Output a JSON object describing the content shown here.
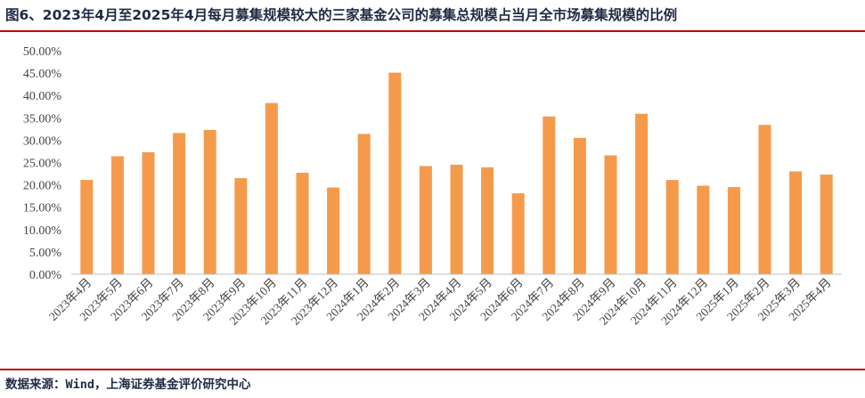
{
  "title": "图6、2023年4月至2025年4月每月募集规模较大的三家基金公司的募集总规模占当月全市场募集规模的比例",
  "source": "数据来源：Wind，上海证券基金评价研究中心",
  "colors": {
    "bar": "#F59A4B",
    "rule": "#C00000",
    "text": "#1F2A44"
  },
  "chart_data": {
    "type": "bar",
    "title": "",
    "xlabel": "",
    "ylabel": "",
    "ylim": [
      0,
      50
    ],
    "yticks": [
      "0.00%",
      "5.00%",
      "10.00%",
      "15.00%",
      "20.00%",
      "25.00%",
      "30.00%",
      "35.00%",
      "40.00%",
      "45.00%",
      "50.00%"
    ],
    "grid": false,
    "legend": "none",
    "categories": [
      "2023年4月",
      "2023年5月",
      "2023年6月",
      "2023年7月",
      "2023年8月",
      "2023年9月",
      "2023年10月",
      "2023年11月",
      "2023年12月",
      "2024年1月",
      "2024年2月",
      "2024年3月",
      "2024年4月",
      "2024年5月",
      "2024年6月",
      "2024年7月",
      "2024年8月",
      "2024年9月",
      "2024年10月",
      "2024年11月",
      "2024年12月",
      "2025年1月",
      "2025年2月",
      "2025年3月",
      "2025年4月"
    ],
    "values": [
      21.1,
      26.4,
      27.3,
      31.6,
      32.3,
      21.5,
      38.3,
      22.7,
      19.4,
      31.4,
      45.1,
      24.2,
      24.5,
      23.9,
      18.1,
      35.3,
      30.5,
      26.6,
      35.9,
      21.1,
      19.8,
      19.5,
      33.4,
      23.0,
      22.3
    ]
  }
}
